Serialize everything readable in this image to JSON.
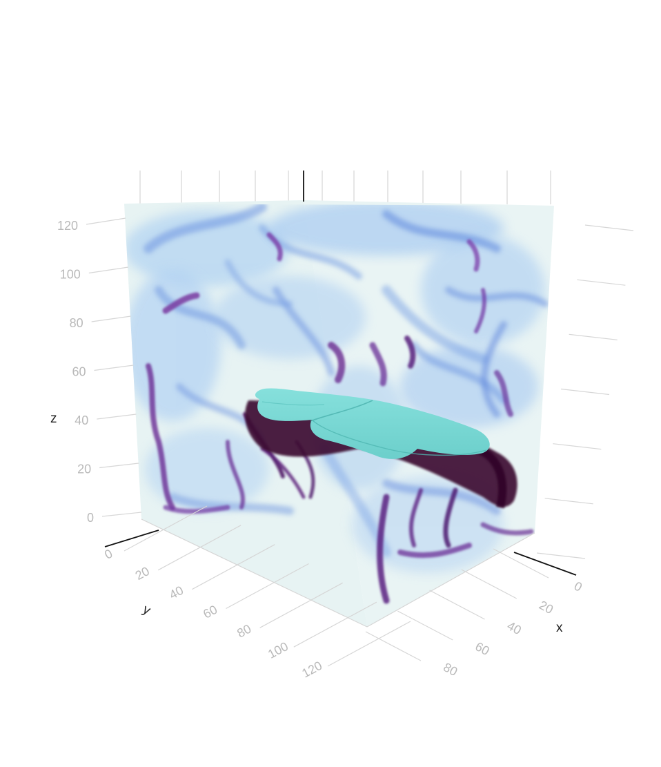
{
  "chart_data": {
    "type": "volume",
    "title": "",
    "xlabel": "x",
    "ylabel": "y",
    "zlabel": "z",
    "x_ticks": [
      "0",
      "20",
      "40",
      "60",
      "80"
    ],
    "y_ticks": [
      "0",
      "20",
      "40",
      "60",
      "80",
      "100",
      "120"
    ],
    "z_ticks": [
      "0",
      "20",
      "40",
      "60",
      "80",
      "100",
      "120"
    ],
    "x_range": [
      0,
      128
    ],
    "y_range": [
      0,
      128
    ],
    "z_range": [
      0,
      128
    ],
    "grid": true,
    "volume": {
      "colorscale": [
        "#e6f3f3",
        "#a9cdf0",
        "#5e86de",
        "#6a3aa8",
        "#3d0a30"
      ],
      "isosurface_color": "#72d8d4"
    }
  }
}
